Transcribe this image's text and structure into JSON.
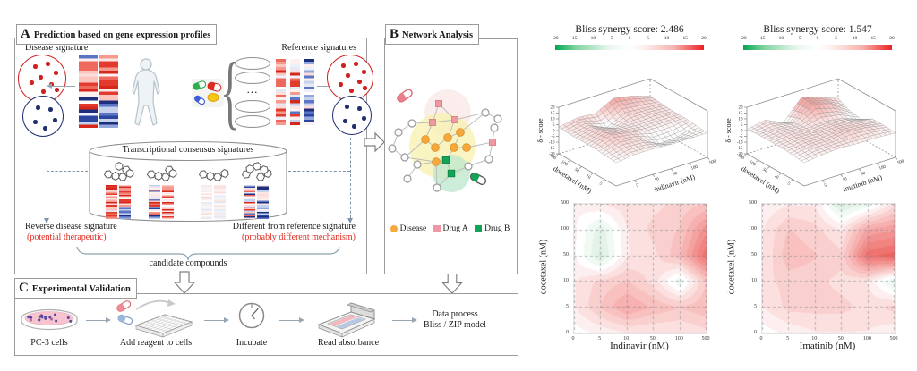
{
  "figure": {
    "panelA": {
      "label": "A",
      "title": "Prediction based on gene expression profiles",
      "disease_label": "Disease signature",
      "reference_label": "Reference signatures",
      "stack_ellipsis": "...",
      "consensus_label": "Transcriptional consensus signatures",
      "reverse_line": "Reverse disease signature",
      "reverse_sub": "(potential therapeutic)",
      "different_line": "Different from reference signature",
      "different_sub": "(probably different mechanism)",
      "candidate_label": "candidate compounds"
    },
    "panelB": {
      "label": "B",
      "title": "Network Analysis",
      "legend": [
        {
          "label": "Disease",
          "color": "#F6A83B",
          "shape": "circle"
        },
        {
          "label": "Drug A",
          "color": "#EF97A3",
          "shape": "square"
        },
        {
          "label": "Drug B",
          "color": "#12A457",
          "shape": "square"
        }
      ]
    },
    "panelC": {
      "label": "C",
      "title": "Experimental Validation",
      "steps": [
        "PC-3 cells",
        "Add reagent to cells",
        "Incubate",
        "Read absorbance"
      ],
      "result_line1": "Data process",
      "result_line2": "Bliss / ZIP model"
    },
    "accent_red_text": "#e02b20"
  },
  "chart_data": [
    {
      "type": "surface",
      "title": "Bliss synergy score: 2.486",
      "score": 2.486,
      "zlabel": "δ - score",
      "xlabel": "indinavir (nM)",
      "ylabel": "docetaxel (nM)",
      "zlim": [
        -20,
        20
      ],
      "zticks": [
        20,
        15,
        10,
        5,
        0,
        -5,
        -10,
        -15,
        -20
      ],
      "xticks": [
        "5",
        "10",
        "50",
        "100",
        "500"
      ],
      "yticks": [
        "5",
        "10",
        "50",
        "100",
        "500"
      ],
      "colorbar": {
        "ticks": [
          "-20",
          "-15",
          "-10",
          "-5",
          "0",
          "5",
          "10",
          "15",
          "20"
        ],
        "neg_color": "#00A651",
        "pos_color": "#EC2024"
      },
      "z": [
        [
          0,
          1,
          2,
          2,
          2,
          3
        ],
        [
          2,
          5,
          8,
          6,
          5,
          6
        ],
        [
          2,
          4,
          5,
          3,
          -2,
          5
        ],
        [
          1,
          -4,
          2,
          3,
          6,
          13
        ],
        [
          1,
          -3,
          2,
          4,
          5,
          10
        ],
        [
          1,
          2,
          3,
          3,
          4,
          5
        ]
      ]
    },
    {
      "type": "surface",
      "title": "Bliss synergy score: 1.547",
      "score": 1.547,
      "zlabel": "δ - score",
      "xlabel": "imatinib (nM)",
      "ylabel": "docetaxel (nM)",
      "zlim": [
        -20,
        20
      ],
      "zticks": [
        20,
        15,
        10,
        5,
        0,
        -5,
        -10,
        -15,
        -20
      ],
      "xticks": [
        "5",
        "10",
        "50",
        "100",
        "500"
      ],
      "yticks": [
        "5",
        "10",
        "50",
        "100",
        "500"
      ],
      "colorbar": {
        "ticks": [
          "-20",
          "-15",
          "-10",
          "-5",
          "0",
          "5",
          "10",
          "15",
          "20"
        ],
        "neg_color": "#00A651",
        "pos_color": "#EC2024"
      },
      "z": [
        [
          0,
          1,
          2,
          2,
          2,
          1
        ],
        [
          2,
          4,
          4,
          4,
          3,
          4
        ],
        [
          3,
          4,
          4,
          3,
          2,
          -3
        ],
        [
          2,
          6,
          5,
          4,
          13,
          14
        ],
        [
          2,
          5,
          4,
          2,
          8,
          9
        ],
        [
          1,
          2,
          2,
          -4,
          -2,
          3
        ]
      ]
    },
    {
      "type": "heatmap",
      "title": "",
      "xlabel": "Indinavir (nM)",
      "ylabel": "docetaxel (nM)",
      "xticks": [
        "0",
        "5",
        "10",
        "50",
        "100",
        "500"
      ],
      "yticks": [
        "0",
        "5",
        "10",
        "50",
        "100",
        "500"
      ],
      "vlim": [
        -20,
        20
      ],
      "values": [
        [
          0,
          1,
          2,
          2,
          2,
          3
        ],
        [
          2,
          5,
          8,
          6,
          5,
          6
        ],
        [
          2,
          4,
          5,
          3,
          -2,
          5
        ],
        [
          1,
          -4,
          2,
          3,
          6,
          13
        ],
        [
          1,
          -3,
          2,
          4,
          5,
          10
        ],
        [
          1,
          2,
          3,
          3,
          4,
          5
        ]
      ]
    },
    {
      "type": "heatmap",
      "title": "",
      "xlabel": "Imatinib (nM)",
      "ylabel": "docetaxel (nM)",
      "xticks": [
        "0",
        "5",
        "10",
        "50",
        "100",
        "500"
      ],
      "yticks": [
        "0",
        "5",
        "10",
        "50",
        "100",
        "500"
      ],
      "vlim": [
        -20,
        20
      ],
      "values": [
        [
          0,
          1,
          2,
          2,
          2,
          1
        ],
        [
          2,
          4,
          4,
          4,
          3,
          4
        ],
        [
          3,
          4,
          4,
          3,
          2,
          -3
        ],
        [
          2,
          6,
          5,
          4,
          13,
          14
        ],
        [
          2,
          5,
          4,
          2,
          8,
          9
        ],
        [
          1,
          2,
          2,
          -4,
          -2,
          3
        ]
      ]
    }
  ]
}
